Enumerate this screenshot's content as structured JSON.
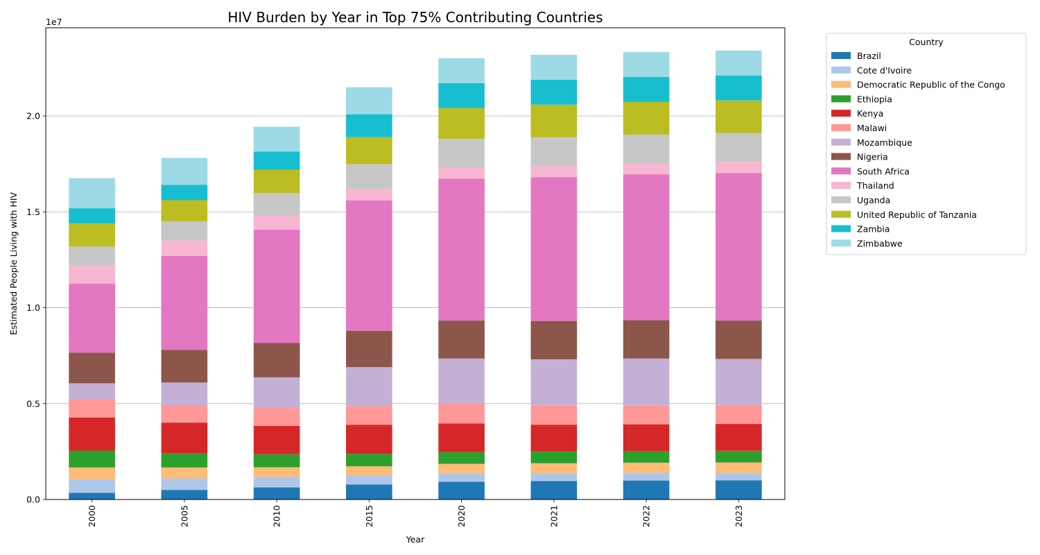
{
  "chart_data": {
    "type": "bar",
    "stacked": true,
    "title": "HIV Burden by Year in Top 75% Contributing Countries",
    "xlabel": "Year",
    "ylabel": "Estimated People Living with HIV",
    "y_offset_text": "1e7",
    "ylim": [
      0,
      24600000
    ],
    "yticks": [
      0,
      5000000,
      10000000,
      15000000,
      20000000
    ],
    "ytick_labels": [
      "0.0",
      "0.5",
      "1.0",
      "1.5",
      "2.0"
    ],
    "grid": "y",
    "legend_title": "Country",
    "legend_placement": "outside-top-right",
    "categories": [
      "2000",
      "2005",
      "2010",
      "2015",
      "2020",
      "2021",
      "2022",
      "2023"
    ],
    "series": [
      {
        "name": "Brazil",
        "color": "#1f77b4",
        "values": [
          350000,
          500000,
          630000,
          780000,
          930000,
          960000,
          990000,
          1000000
        ]
      },
      {
        "name": "Cote d'Ivoire",
        "color": "#aec7e8",
        "values": [
          700000,
          600000,
          550000,
          480000,
          420000,
          410000,
          400000,
          390000
        ]
      },
      {
        "name": "Democratic Republic of the Congo",
        "color": "#ffbb78",
        "values": [
          620000,
          570000,
          500000,
          470000,
          510000,
          520000,
          530000,
          540000
        ]
      },
      {
        "name": "Ethiopia",
        "color": "#2ca02c",
        "values": [
          880000,
          740000,
          680000,
          650000,
          610000,
          610000,
          600000,
          610000
        ]
      },
      {
        "name": "Kenya",
        "color": "#d62728",
        "values": [
          1720000,
          1600000,
          1480000,
          1520000,
          1500000,
          1400000,
          1400000,
          1400000
        ]
      },
      {
        "name": "Malawi",
        "color": "#ff9896",
        "values": [
          970000,
          910000,
          930000,
          970000,
          1030000,
          1010000,
          990000,
          990000
        ]
      },
      {
        "name": "Mozambique",
        "color": "#c5b0d5",
        "values": [
          820000,
          1180000,
          1600000,
          2030000,
          2350000,
          2400000,
          2440000,
          2400000
        ]
      },
      {
        "name": "Nigeria",
        "color": "#8c564b",
        "values": [
          1600000,
          1700000,
          1800000,
          1900000,
          1980000,
          2000000,
          2000000,
          2000000
        ]
      },
      {
        "name": "South Africa",
        "color": "#e377c2",
        "values": [
          3600000,
          4900000,
          5900000,
          6800000,
          7400000,
          7500000,
          7600000,
          7700000
        ]
      },
      {
        "name": "Thailand",
        "color": "#f7b6d2",
        "values": [
          930000,
          810000,
          720000,
          590000,
          580000,
          580000,
          580000,
          580000
        ]
      },
      {
        "name": "Uganda",
        "color": "#c7c7c7",
        "values": [
          1000000,
          1000000,
          1200000,
          1300000,
          1500000,
          1500000,
          1500000,
          1500000
        ]
      },
      {
        "name": "United Republic of Tanzania",
        "color": "#bcbd22",
        "values": [
          1200000,
          1100000,
          1200000,
          1400000,
          1600000,
          1700000,
          1700000,
          1700000
        ]
      },
      {
        "name": "Zambia",
        "color": "#17becf",
        "values": [
          800000,
          800000,
          950000,
          1200000,
          1300000,
          1300000,
          1300000,
          1300000
        ]
      },
      {
        "name": "Zimbabwe",
        "color": "#9edae5",
        "values": [
          1560000,
          1400000,
          1300000,
          1410000,
          1300000,
          1300000,
          1300000,
          1300000
        ]
      }
    ]
  }
}
